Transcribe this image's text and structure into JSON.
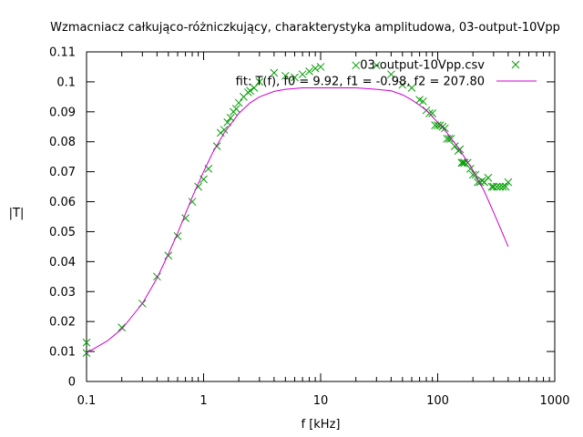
{
  "chart_data": {
    "type": "scatter",
    "title": "Wzmacniacz całkująco-różniczkujący, charakterystyka amplitudowa, 03-output-10Vpp",
    "xlabel": "f [kHz]",
    "ylabel": "|T|",
    "xscale": "log",
    "xlim": [
      0.1,
      1000
    ],
    "ylim": [
      0,
      0.11
    ],
    "x_ticks": [
      0.1,
      1,
      10,
      100,
      1000
    ],
    "x_tick_labels": [
      "0.1",
      "1",
      "10",
      "100",
      "1000"
    ],
    "y_ticks": [
      0,
      0.01,
      0.02,
      0.03,
      0.04,
      0.05,
      0.06,
      0.07,
      0.08,
      0.09,
      0.1,
      0.11
    ],
    "y_tick_labels": [
      "0",
      "0.01",
      "0.02",
      "0.03",
      "0.04",
      "0.05",
      "0.06",
      "0.07",
      "0.08",
      "0.09",
      "0.1",
      "0.11"
    ],
    "grid": false,
    "legend_position": "top-right",
    "series": [
      {
        "name": "03-output-10Vpp.csv",
        "style": "points",
        "marker": "x",
        "color": "#009e00",
        "x": [
          0.1,
          0.1,
          0.2,
          0.3,
          0.4,
          0.5,
          0.6,
          0.7,
          0.8,
          0.9,
          1.0,
          1.1,
          1.3,
          1.4,
          1.5,
          1.6,
          1.7,
          1.8,
          1.9,
          2.0,
          2.2,
          2.4,
          2.5,
          2.7,
          3.0,
          4.0,
          5.0,
          6.0,
          7.0,
          8.0,
          9.0,
          10,
          20,
          30,
          40,
          50,
          60,
          70,
          75,
          80,
          85,
          90,
          95,
          100,
          105,
          110,
          115,
          120,
          125,
          130,
          140,
          150,
          155,
          160,
          165,
          170,
          180,
          190,
          200,
          210,
          220,
          230,
          240,
          250,
          270,
          290,
          300,
          320,
          340,
          360,
          380,
          400
        ],
        "y": [
          0.0095,
          0.013,
          0.018,
          0.026,
          0.035,
          0.042,
          0.0485,
          0.0545,
          0.06,
          0.065,
          0.0675,
          0.071,
          0.0785,
          0.083,
          0.084,
          0.0865,
          0.088,
          0.09,
          0.091,
          0.093,
          0.095,
          0.0965,
          0.097,
          0.098,
          0.1,
          0.103,
          0.102,
          0.1015,
          0.1025,
          0.1035,
          0.1045,
          0.105,
          0.1055,
          0.1055,
          0.1025,
          0.099,
          0.098,
          0.094,
          0.0935,
          0.0905,
          0.0895,
          0.0895,
          0.0855,
          0.0855,
          0.0855,
          0.085,
          0.0845,
          0.081,
          0.081,
          0.081,
          0.0785,
          0.077,
          0.0775,
          0.073,
          0.073,
          0.073,
          0.073,
          0.071,
          0.069,
          0.069,
          0.0665,
          0.0665,
          0.067,
          0.0665,
          0.068,
          0.065,
          0.065,
          0.065,
          0.065,
          0.065,
          0.065,
          0.0665
        ]
      },
      {
        "name": "fit: T(f), f0 = 9.92, f1 = -0.98, f2 = 207.80",
        "style": "line",
        "color": "#cc00cc",
        "x": [
          0.1,
          0.15,
          0.2,
          0.3,
          0.4,
          0.5,
          0.6,
          0.7,
          0.8,
          1.0,
          1.2,
          1.5,
          2.0,
          2.5,
          3.0,
          4.0,
          5.0,
          7.0,
          10,
          15,
          20,
          30,
          40,
          50,
          60,
          70,
          80,
          100,
          120,
          150,
          200,
          250,
          300,
          400
        ],
        "y": [
          0.0095,
          0.0135,
          0.0175,
          0.026,
          0.0345,
          0.0425,
          0.0495,
          0.056,
          0.0615,
          0.07,
          0.0765,
          0.083,
          0.0895,
          0.093,
          0.095,
          0.0968,
          0.0975,
          0.098,
          0.098,
          0.098,
          0.098,
          0.0975,
          0.097,
          0.0957,
          0.094,
          0.0922,
          0.0905,
          0.0865,
          0.083,
          0.078,
          0.0705,
          0.0635,
          0.0565,
          0.045
        ]
      }
    ]
  }
}
